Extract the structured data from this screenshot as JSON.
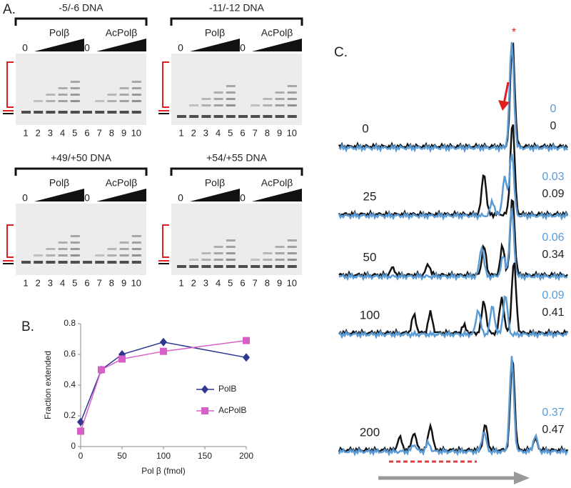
{
  "panel_a": {
    "label": "A.",
    "gels": [
      {
        "title": "-5/-6 DNA",
        "zero": "0",
        "groups": [
          "Polβ",
          "AcPolβ"
        ],
        "lanes": [
          "1",
          "2",
          "3",
          "4",
          "5",
          "6",
          "7",
          "8",
          "9",
          "10"
        ]
      },
      {
        "title": "-11/-12 DNA",
        "zero": "0",
        "groups": [
          "Polβ",
          "AcPolβ"
        ],
        "lanes": [
          "1",
          "2",
          "3",
          "4",
          "5",
          "6",
          "7",
          "8",
          "9",
          "10"
        ]
      },
      {
        "title": "+49/+50 DNA",
        "zero": "0",
        "groups": [
          "Polβ",
          "AcPolβ"
        ],
        "lanes": [
          "1",
          "2",
          "3",
          "4",
          "5",
          "6",
          "7",
          "8",
          "9",
          "10"
        ]
      },
      {
        "title": "+54/+55 DNA",
        "zero": "0",
        "groups": [
          "Polβ",
          "AcPolβ"
        ],
        "lanes": [
          "1",
          "2",
          "3",
          "4",
          "5",
          "6",
          "7",
          "8",
          "9",
          "10"
        ]
      }
    ]
  },
  "chart_data": {
    "type": "line",
    "label": "B.",
    "x_label": "Pol β (fmol)",
    "y_label": "Fraction extended",
    "x": [
      0,
      25,
      50,
      100,
      200
    ],
    "series": [
      {
        "name": "PolB",
        "color": "#2e3790",
        "marker": "diamond",
        "values": [
          0.16,
          0.5,
          0.6,
          0.68,
          0.58
        ]
      },
      {
        "name": "AcPolB",
        "color": "#d660c8",
        "marker": "square",
        "values": [
          0.1,
          0.5,
          0.57,
          0.62,
          0.69
        ]
      }
    ],
    "xlim": [
      0,
      200
    ],
    "xticks": [
      0,
      50,
      100,
      150,
      200
    ],
    "ylim": [
      0,
      0.8
    ],
    "yticks": [
      0,
      0.2,
      0.4,
      0.6,
      0.8
    ]
  },
  "panel_c": {
    "label": "C.",
    "asterisk": "*",
    "traces": [
      {
        "dose": "0",
        "blue": 0,
        "black": 0
      },
      {
        "dose": "25",
        "blue": 0.03,
        "black": 0.09
      },
      {
        "dose": "50",
        "blue": 0.06,
        "black": 0.34
      },
      {
        "dose": "100",
        "blue": 0.09,
        "black": 0.41
      },
      {
        "dose": "200",
        "blue": 0.37,
        "black": 0.47
      }
    ]
  }
}
